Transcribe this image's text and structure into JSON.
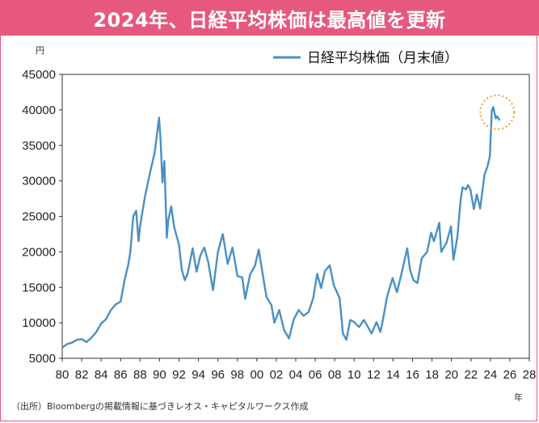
{
  "header": {
    "title": "2024年、日経平均株価は最高値を更新"
  },
  "footer": {
    "source": "（出所）Bloombergの掲載情報に基づきレオス・キャピタルワークス作成"
  },
  "colors": {
    "banner": "#e6587e",
    "line": "#4a90c4",
    "highlight": "#f0a030",
    "axis": "#333333"
  },
  "chart_data": {
    "type": "line",
    "ylabel": "円",
    "xlabel": "年",
    "ylim": [
      5000,
      45000
    ],
    "yticks": [
      5000,
      10000,
      15000,
      20000,
      25000,
      30000,
      35000,
      40000,
      45000
    ],
    "xlim": [
      1980,
      2028
    ],
    "xticks": [
      "80",
      "82",
      "84",
      "86",
      "88",
      "90",
      "92",
      "94",
      "96",
      "98",
      "00",
      "02",
      "04",
      "06",
      "08",
      "10",
      "12",
      "14",
      "16",
      "18",
      "20",
      "22",
      "24",
      "26",
      "28"
    ],
    "grid": false,
    "legend_position": "top-right",
    "highlight_circle_year": 2024.2,
    "series": [
      {
        "name": "日経平均株価（月末値）",
        "points": [
          [
            1980.0,
            6500
          ],
          [
            1980.5,
            7000
          ],
          [
            1981.0,
            7200
          ],
          [
            1981.5,
            7600
          ],
          [
            1982.0,
            7700
          ],
          [
            1982.5,
            7300
          ],
          [
            1983.0,
            7900
          ],
          [
            1983.5,
            8700
          ],
          [
            1984.0,
            9900
          ],
          [
            1984.5,
            10500
          ],
          [
            1985.0,
            11800
          ],
          [
            1985.5,
            12600
          ],
          [
            1986.0,
            13000
          ],
          [
            1986.4,
            16000
          ],
          [
            1986.8,
            18300
          ],
          [
            1987.0,
            20000
          ],
          [
            1987.3,
            25000
          ],
          [
            1987.6,
            25800
          ],
          [
            1987.85,
            21500
          ],
          [
            1988.0,
            23600
          ],
          [
            1988.5,
            27800
          ],
          [
            1989.0,
            31000
          ],
          [
            1989.5,
            34000
          ],
          [
            1989.95,
            38900
          ],
          [
            1990.1,
            36000
          ],
          [
            1990.3,
            29800
          ],
          [
            1990.5,
            32800
          ],
          [
            1990.75,
            22000
          ],
          [
            1990.9,
            24500
          ],
          [
            1991.2,
            26400
          ],
          [
            1991.5,
            23500
          ],
          [
            1992.0,
            21000
          ],
          [
            1992.3,
            17400
          ],
          [
            1992.6,
            16000
          ],
          [
            1992.9,
            17000
          ],
          [
            1993.4,
            20500
          ],
          [
            1993.8,
            17200
          ],
          [
            1994.2,
            19500
          ],
          [
            1994.6,
            20600
          ],
          [
            1995.0,
            18600
          ],
          [
            1995.5,
            14600
          ],
          [
            1996.0,
            20000
          ],
          [
            1996.5,
            22500
          ],
          [
            1997.0,
            18300
          ],
          [
            1997.5,
            20600
          ],
          [
            1998.0,
            16600
          ],
          [
            1998.5,
            16400
          ],
          [
            1998.8,
            13400
          ],
          [
            1999.3,
            16800
          ],
          [
            1999.8,
            18000
          ],
          [
            2000.2,
            20300
          ],
          [
            2000.7,
            16000
          ],
          [
            2001.0,
            13600
          ],
          [
            2001.5,
            12500
          ],
          [
            2001.8,
            10000
          ],
          [
            2002.3,
            11800
          ],
          [
            2002.8,
            9000
          ],
          [
            2003.3,
            7800
          ],
          [
            2003.8,
            10500
          ],
          [
            2004.3,
            11800
          ],
          [
            2004.8,
            11000
          ],
          [
            2005.3,
            11500
          ],
          [
            2005.8,
            13500
          ],
          [
            2006.2,
            16900
          ],
          [
            2006.6,
            14900
          ],
          [
            2007.0,
            17300
          ],
          [
            2007.5,
            18100
          ],
          [
            2007.9,
            15300
          ],
          [
            2008.5,
            13500
          ],
          [
            2008.85,
            8500
          ],
          [
            2009.2,
            7600
          ],
          [
            2009.6,
            10400
          ],
          [
            2010.0,
            10100
          ],
          [
            2010.5,
            9400
          ],
          [
            2011.0,
            10400
          ],
          [
            2011.3,
            9700
          ],
          [
            2011.8,
            8500
          ],
          [
            2012.3,
            10100
          ],
          [
            2012.7,
            8700
          ],
          [
            2012.95,
            10400
          ],
          [
            2013.4,
            13800
          ],
          [
            2013.95,
            16300
          ],
          [
            2014.4,
            14300
          ],
          [
            2014.95,
            17450
          ],
          [
            2015.45,
            20500
          ],
          [
            2015.75,
            17400
          ],
          [
            2016.1,
            16000
          ],
          [
            2016.5,
            15600
          ],
          [
            2016.95,
            19100
          ],
          [
            2017.5,
            20000
          ],
          [
            2017.9,
            22700
          ],
          [
            2018.2,
            21500
          ],
          [
            2018.75,
            24100
          ],
          [
            2018.95,
            20000
          ],
          [
            2019.5,
            21300
          ],
          [
            2019.95,
            23600
          ],
          [
            2020.2,
            18900
          ],
          [
            2020.6,
            22000
          ],
          [
            2020.95,
            27400
          ],
          [
            2021.15,
            29100
          ],
          [
            2021.5,
            28800
          ],
          [
            2021.7,
            29400
          ],
          [
            2021.95,
            28800
          ],
          [
            2022.3,
            26000
          ],
          [
            2022.6,
            28100
          ],
          [
            2022.95,
            26100
          ],
          [
            2023.4,
            30900
          ],
          [
            2023.7,
            32000
          ],
          [
            2023.95,
            33500
          ],
          [
            2024.15,
            39900
          ],
          [
            2024.3,
            40400
          ],
          [
            2024.55,
            38800
          ],
          [
            2024.7,
            39100
          ],
          [
            2024.95,
            38500
          ]
        ]
      }
    ]
  }
}
